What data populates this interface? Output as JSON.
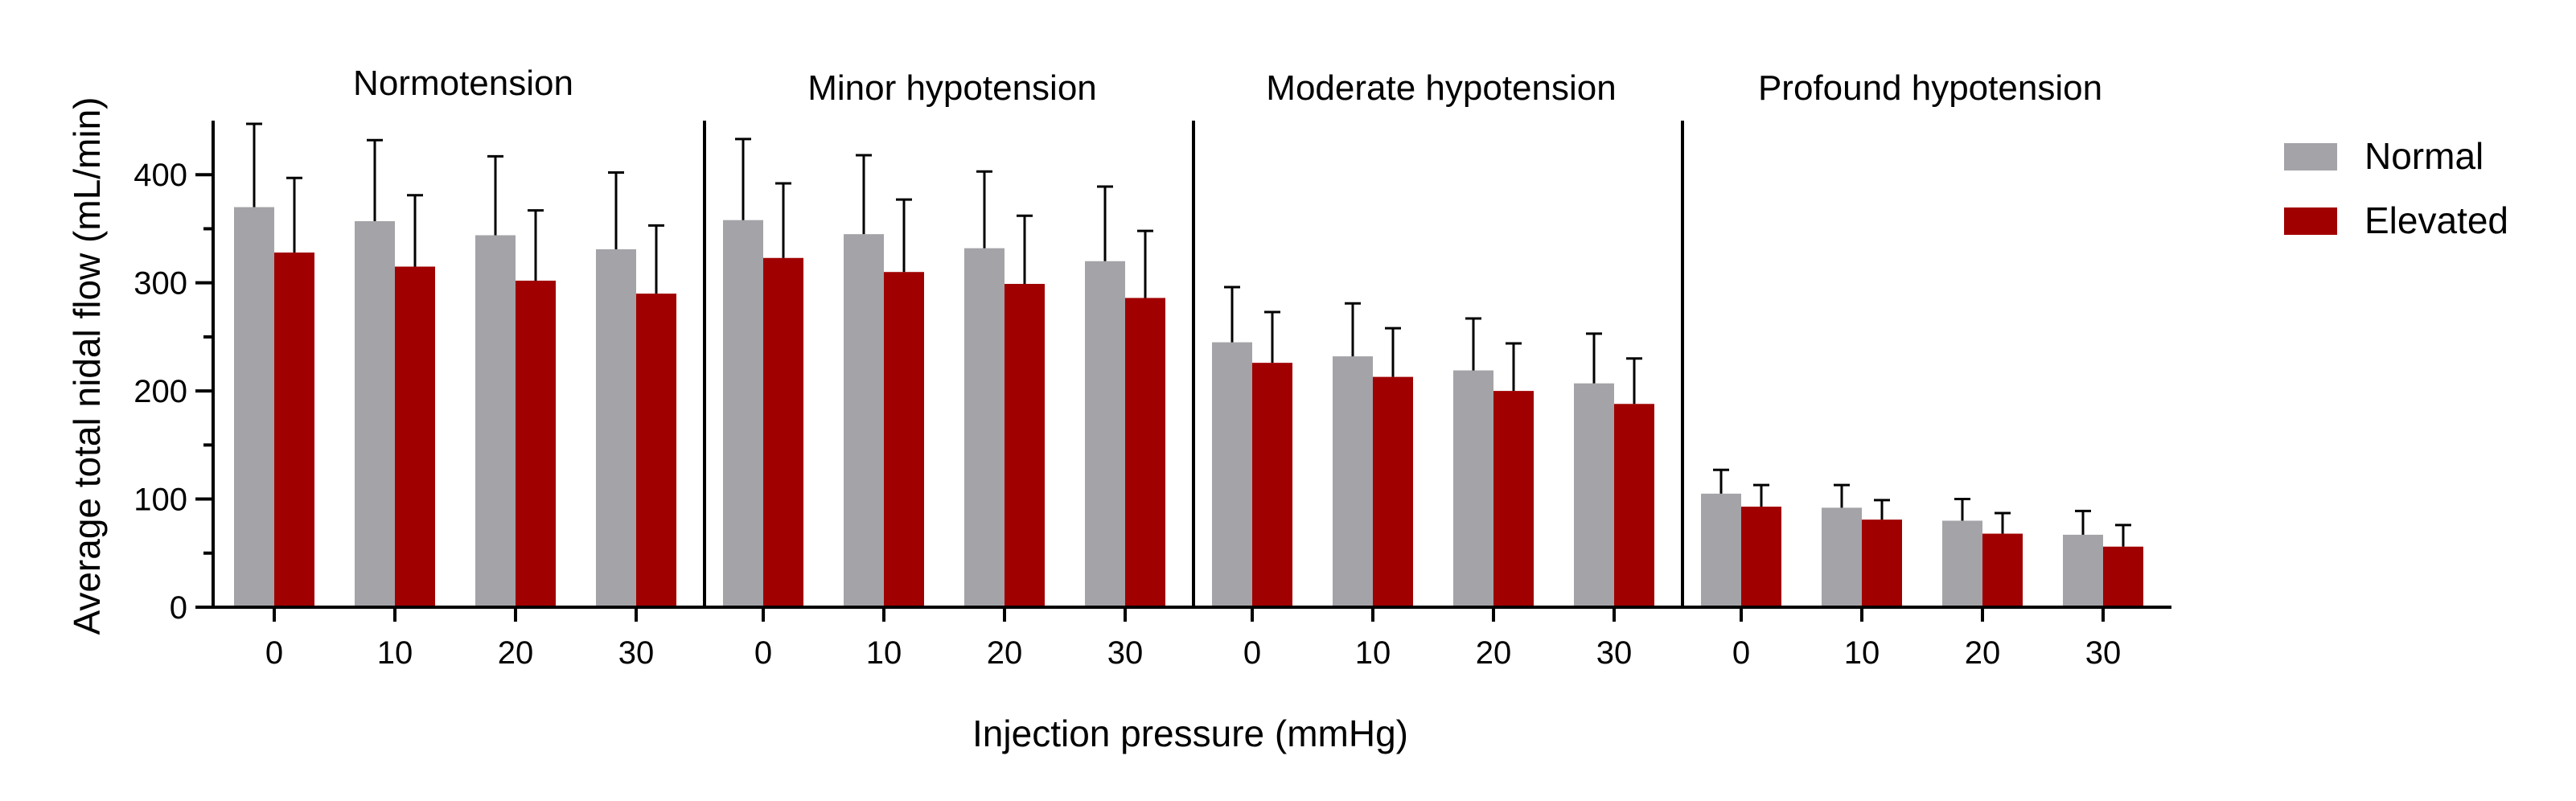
{
  "chart_data": {
    "type": "bar",
    "ylabel": "Average total nidal flow (mL/min)",
    "xlabel": "Injection pressure (mmHg)",
    "ylim": [
      0,
      450
    ],
    "yticks": [
      0,
      100,
      200,
      300,
      400
    ],
    "categories": [
      "0",
      "10",
      "20",
      "30"
    ],
    "grid": false,
    "legend_position": "top-right",
    "colors": {
      "Normal": "#a3a3a8",
      "Elevated": "#a00000"
    },
    "legend": [
      "Normal",
      "Elevated"
    ],
    "panels": [
      {
        "title": "Normotension",
        "series": [
          {
            "name": "Normal",
            "values": [
              370,
              357,
              344,
              331
            ],
            "errors": [
              77,
              75,
              73,
              71
            ]
          },
          {
            "name": "Elevated",
            "values": [
              328,
              315,
              302,
              290
            ],
            "errors": [
              69,
              66,
              65,
              63
            ]
          }
        ]
      },
      {
        "title": "Minor hypotension",
        "series": [
          {
            "name": "Normal",
            "values": [
              358,
              345,
              332,
              320
            ],
            "errors": [
              75,
              73,
              71,
              69
            ]
          },
          {
            "name": "Elevated",
            "values": [
              323,
              310,
              299,
              286
            ],
            "errors": [
              69,
              67,
              63,
              62
            ]
          }
        ]
      },
      {
        "title": "Moderate hypotension",
        "series": [
          {
            "name": "Normal",
            "values": [
              245,
              232,
              219,
              207
            ],
            "errors": [
              51,
              49,
              48,
              46
            ]
          },
          {
            "name": "Elevated",
            "values": [
              226,
              213,
              200,
              188
            ],
            "errors": [
              47,
              45,
              44,
              42
            ]
          }
        ]
      },
      {
        "title": "Profound hypotension",
        "series": [
          {
            "name": "Normal",
            "values": [
              105,
              92,
              80,
              67
            ],
            "errors": [
              22,
              21,
              20,
              22
            ]
          },
          {
            "name": "Elevated",
            "values": [
              93,
              81,
              68,
              56
            ],
            "errors": [
              20,
              18,
              19,
              20
            ]
          }
        ]
      }
    ]
  }
}
